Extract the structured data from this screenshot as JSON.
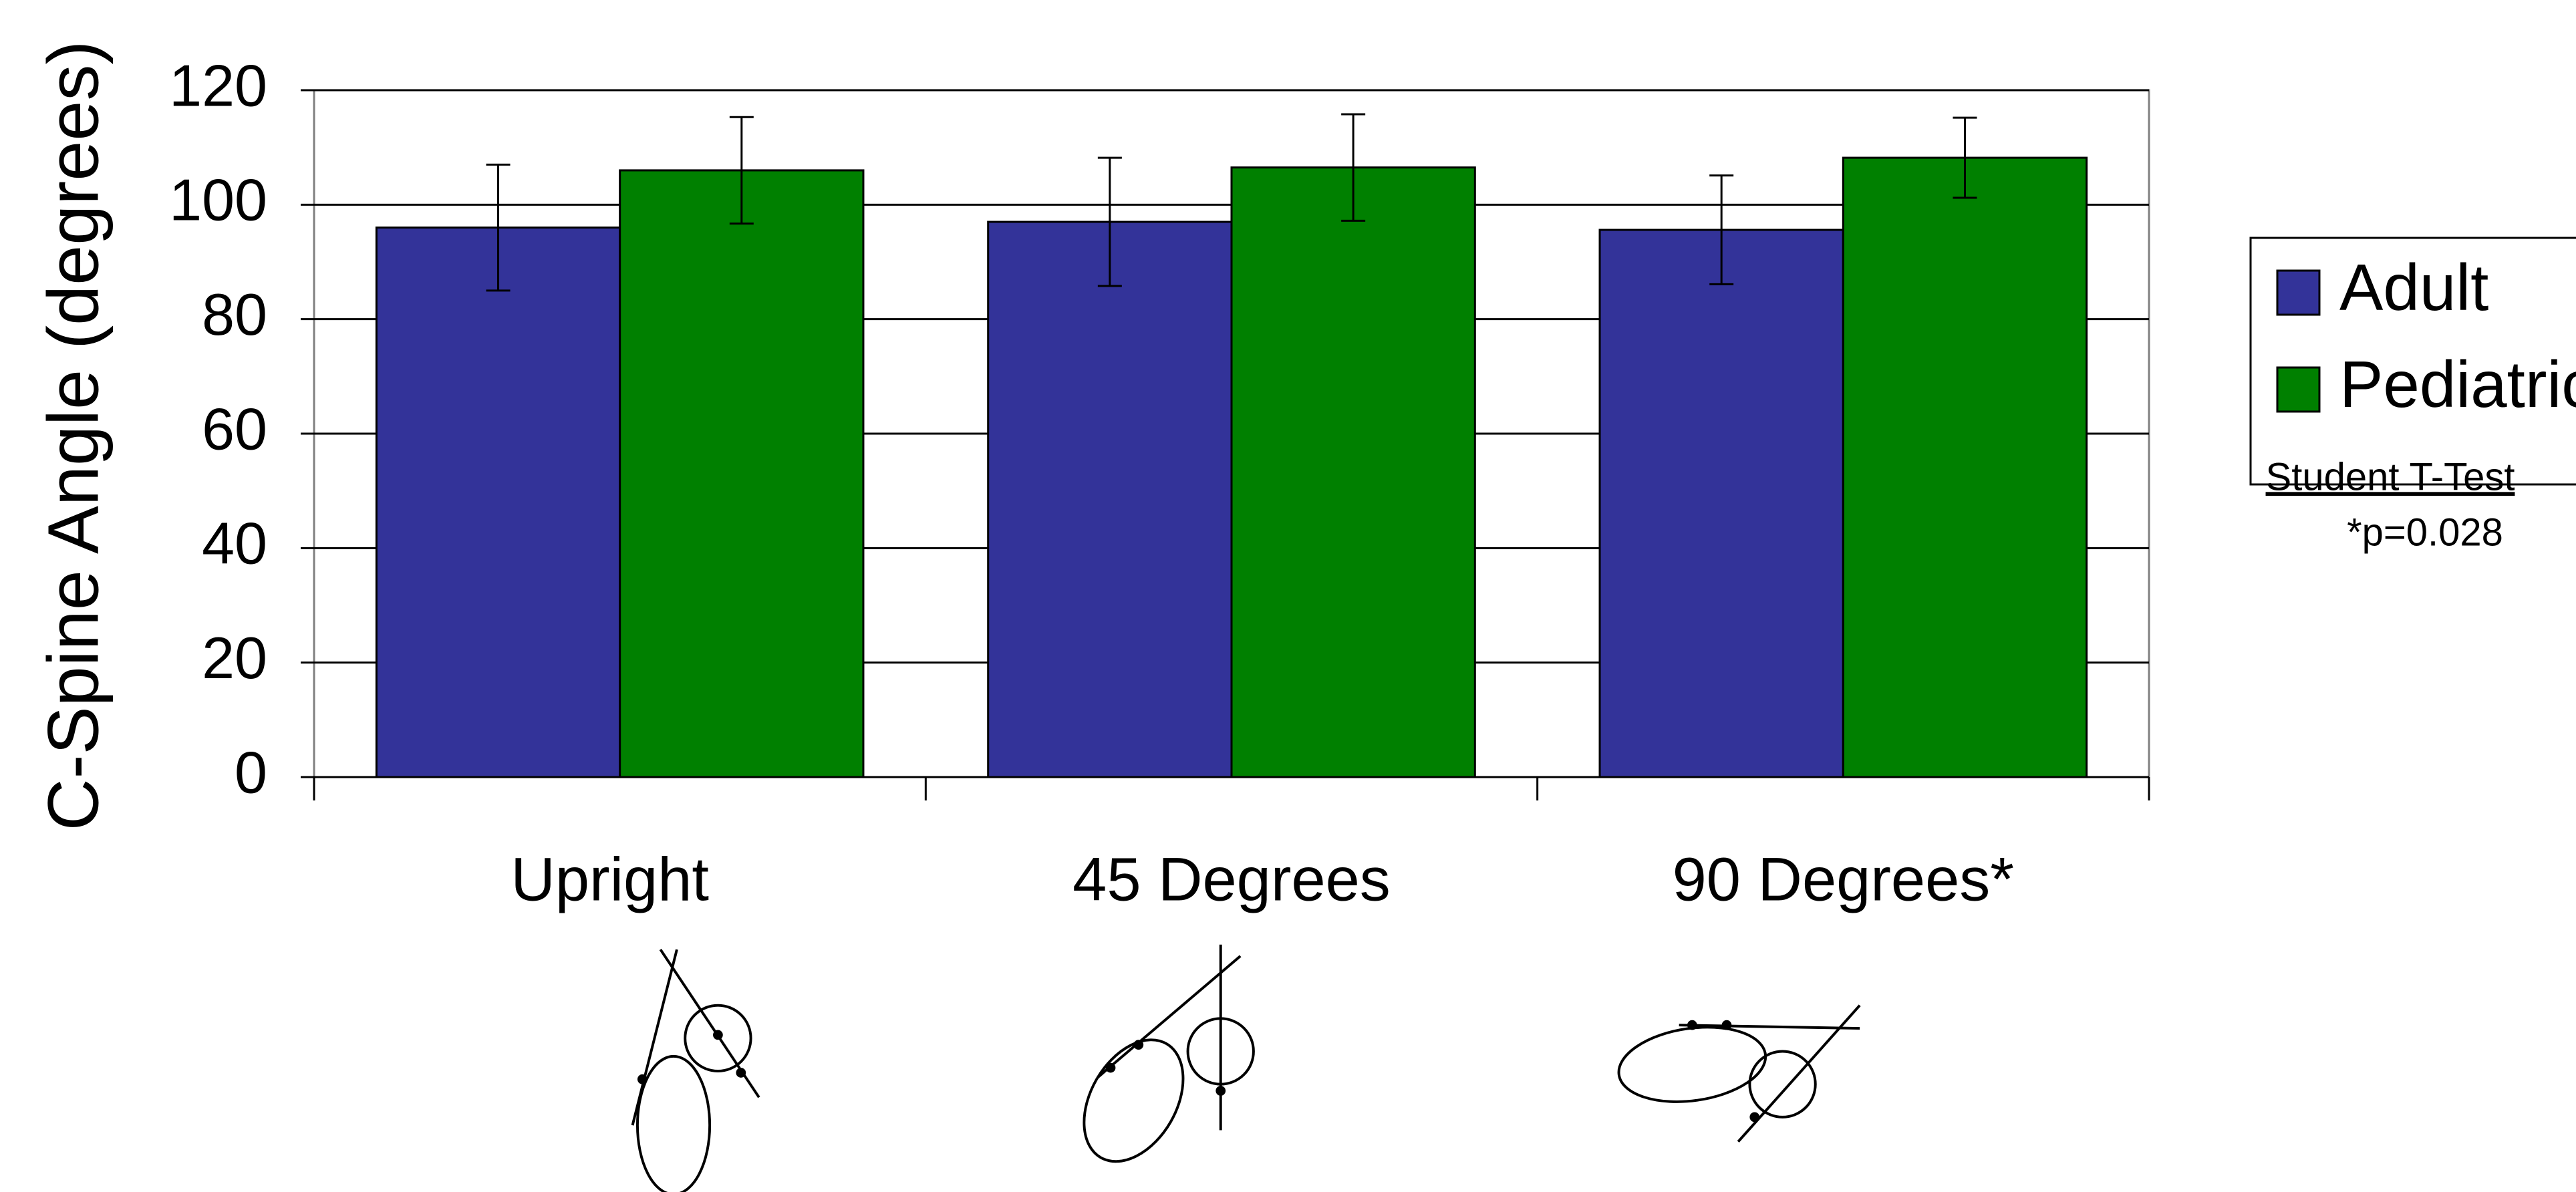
{
  "chart_data": {
    "type": "bar",
    "y_label": "C-Spine Angle (degrees)",
    "categories": [
      "Upright",
      "45 Degrees",
      "90 Degrees*"
    ],
    "series": [
      {
        "name": "Adult",
        "color": "#333399",
        "values": [
          96,
          97,
          95.6
        ],
        "errors": [
          11,
          11.2,
          9.5
        ]
      },
      {
        "name": "Pediatric",
        "color": "#008000",
        "values": [
          106,
          106.5,
          108.2
        ],
        "errors": [
          9.3,
          9.3,
          7
        ]
      }
    ],
    "ylim": [
      0,
      120
    ],
    "yticks": [
      0,
      20,
      40,
      60,
      80,
      100,
      120
    ],
    "grid": true,
    "annotations": [
      "Student T-Test",
      "*p=0.028"
    ]
  }
}
